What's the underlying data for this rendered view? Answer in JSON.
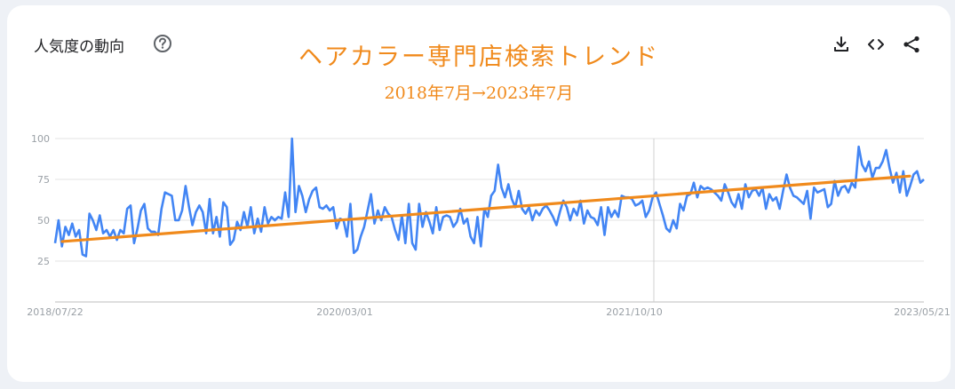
{
  "card": {
    "title": "人気度の動向"
  },
  "overlay": {
    "title": "ヘアカラー専門店検索トレンド",
    "subtitle": "2018年7月→2023年7月"
  },
  "icons": {
    "help": "help-icon",
    "download": "download-icon",
    "embed": "embed-code-icon",
    "share": "share-icon"
  },
  "colors": {
    "series": "#4285f4",
    "trend": "#f08a1c",
    "grid": "#e3e3e3",
    "axis_text": "#9aa0a6"
  },
  "chart_data": {
    "type": "line",
    "y_ticks": [
      25,
      50,
      75,
      100
    ],
    "ylim": [
      0,
      100
    ],
    "x_tick_labels": [
      "2018/07/22",
      "2020/03/01",
      "2021/10/10",
      "2023/05/21"
    ],
    "grid": true,
    "legend": "none",
    "series": [
      {
        "role": "search interest",
        "values": [
          36,
          50,
          34,
          46,
          41,
          48,
          40,
          44,
          29,
          28,
          54,
          50,
          44,
          53,
          42,
          44,
          40,
          44,
          38,
          44,
          42,
          57,
          59,
          36,
          45,
          56,
          60,
          45,
          43,
          43,
          41,
          57,
          67,
          66,
          65,
          50,
          50,
          56,
          71,
          58,
          47,
          55,
          59,
          55,
          42,
          63,
          42,
          52,
          40,
          61,
          58,
          35,
          38,
          49,
          44,
          55,
          46,
          58,
          42,
          51,
          43,
          58,
          48,
          52,
          50,
          52,
          51,
          67,
          52,
          100,
          55,
          71,
          65,
          55,
          63,
          68,
          70,
          58,
          57,
          59,
          56,
          58,
          45,
          51,
          50,
          40,
          60,
          30,
          32,
          40,
          46,
          56,
          66,
          48,
          56,
          50,
          58,
          54,
          52,
          44,
          38,
          53,
          36,
          60,
          36,
          32,
          60,
          46,
          55,
          49,
          42,
          58,
          44,
          52,
          53,
          52,
          46,
          49,
          57,
          48,
          51,
          40,
          36,
          52,
          34,
          57,
          52,
          65,
          68,
          84,
          70,
          64,
          72,
          63,
          58,
          68,
          57,
          54,
          58,
          50,
          56,
          53,
          57,
          59,
          56,
          52,
          47,
          55,
          62,
          58,
          50,
          57,
          53,
          62,
          48,
          56,
          52,
          51,
          47,
          58,
          41,
          58,
          52,
          56,
          52,
          65,
          64,
          64,
          63,
          59,
          60,
          62,
          52,
          56,
          64,
          67,
          60,
          53,
          45,
          43,
          50,
          45,
          60,
          56,
          65,
          66,
          73,
          64,
          71,
          69,
          70,
          69,
          67,
          65,
          62,
          72,
          67,
          61,
          58,
          66,
          57,
          72,
          64,
          68,
          69,
          65,
          70,
          57,
          66,
          62,
          64,
          57,
          68,
          78,
          70,
          65,
          64,
          62,
          60,
          68,
          51,
          70,
          67,
          68,
          69,
          58,
          60,
          74,
          65,
          70,
          71,
          67,
          73,
          70,
          95,
          84,
          80,
          86,
          76,
          82,
          82,
          86,
          93,
          82,
          73,
          79,
          67,
          80,
          65,
          71,
          78,
          80,
          73,
          75
        ]
      },
      {
        "role": "linear trend",
        "x": [
          0,
          1
        ],
        "values": [
          37,
          77
        ]
      }
    ]
  }
}
